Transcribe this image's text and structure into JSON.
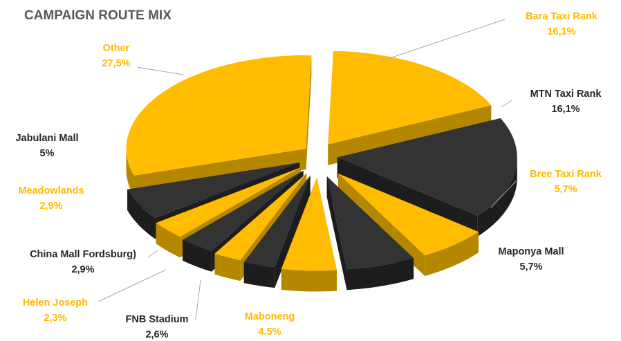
{
  "chart_data": {
    "type": "pie",
    "title": "CAMPAIGN ROUTE MIX",
    "style": "3d-exploded",
    "colors": {
      "gold": "#FFB900",
      "dark": "#333333",
      "gold_label": "#FFB900",
      "dark_label": "#262626"
    },
    "slices": [
      {
        "label": "Bara Taxi Rank",
        "value_text": "16,1%",
        "value": 16.1,
        "color": "gold"
      },
      {
        "label": "MTN Taxi Rank",
        "value_text": "16,1%",
        "value": 16.1,
        "color": "dark"
      },
      {
        "label": "Bree Taxi Rank",
        "value_text": "5,7%",
        "value": 5.7,
        "color": "gold"
      },
      {
        "label": "Maponya Mall",
        "value_text": "5,7%",
        "value": 5.7,
        "color": "dark"
      },
      {
        "label": "Maboneng",
        "value_text": "4,5%",
        "value": 4.5,
        "color": "gold"
      },
      {
        "label": "FNB Stadium",
        "value_text": "2,6%",
        "value": 2.6,
        "color": "dark"
      },
      {
        "label": "Helen Joseph",
        "value_text": "2,3%",
        "value": 2.3,
        "color": "gold"
      },
      {
        "label": "China Mall Fordsburg)",
        "value_text": "2,9%",
        "value": 2.9,
        "color": "dark"
      },
      {
        "label": "Meadowlands",
        "value_text": "2,9%",
        "value": 2.9,
        "color": "gold"
      },
      {
        "label": "Jabulani Mall",
        "value_text": "5%",
        "value": 5,
        "color": "dark"
      },
      {
        "label": "Other",
        "value_text": "27,5%",
        "value": 27.5,
        "color": "gold"
      }
    ]
  }
}
